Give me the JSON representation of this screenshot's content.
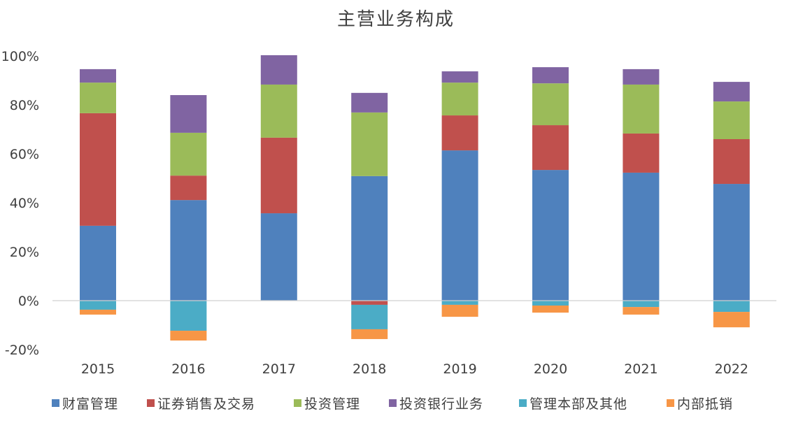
{
  "chart_data": {
    "type": "bar",
    "stacked": true,
    "title": "主营业务构成",
    "xlabel": "",
    "ylabel": "",
    "ylim": [
      -20,
      100
    ],
    "yticks": [
      -20,
      0,
      20,
      40,
      60,
      80,
      100
    ],
    "ytick_labels": [
      "-20%",
      "0%",
      "20%",
      "40%",
      "60%",
      "80%",
      "100%"
    ],
    "grid": false,
    "legend_position": "bottom",
    "categories": [
      "2015",
      "2016",
      "2017",
      "2018",
      "2019",
      "2020",
      "2021",
      "2022"
    ],
    "series": [
      {
        "name": "财富管理",
        "color": "#4F81BD",
        "values": [
          30.6,
          41.1,
          35.7,
          50.9,
          61.4,
          53.4,
          52.3,
          47.7
        ]
      },
      {
        "name": "证券销售及交易",
        "color": "#C0504D",
        "values": [
          46.0,
          10.0,
          30.9,
          -1.7,
          14.3,
          18.3,
          16.0,
          18.3
        ]
      },
      {
        "name": "投资管理",
        "color": "#9BBB59",
        "values": [
          12.5,
          17.5,
          21.7,
          26.0,
          13.4,
          17.1,
          20.0,
          15.4
        ]
      },
      {
        "name": "投资银行业务",
        "color": "#8064A2",
        "values": [
          5.5,
          15.4,
          12.0,
          8.0,
          4.6,
          6.6,
          6.3,
          8.0
        ]
      },
      {
        "name": "管理本部及其他",
        "color": "#4BACC6",
        "values": [
          -3.7,
          -12.3,
          0,
          -10.0,
          -1.7,
          -2.0,
          -2.6,
          -4.6
        ]
      },
      {
        "name": "内部抵销",
        "color": "#F79646",
        "values": [
          -2.0,
          -4.0,
          0,
          -4.0,
          -4.9,
          -2.9,
          -3.1,
          -6.3
        ]
      }
    ]
  }
}
